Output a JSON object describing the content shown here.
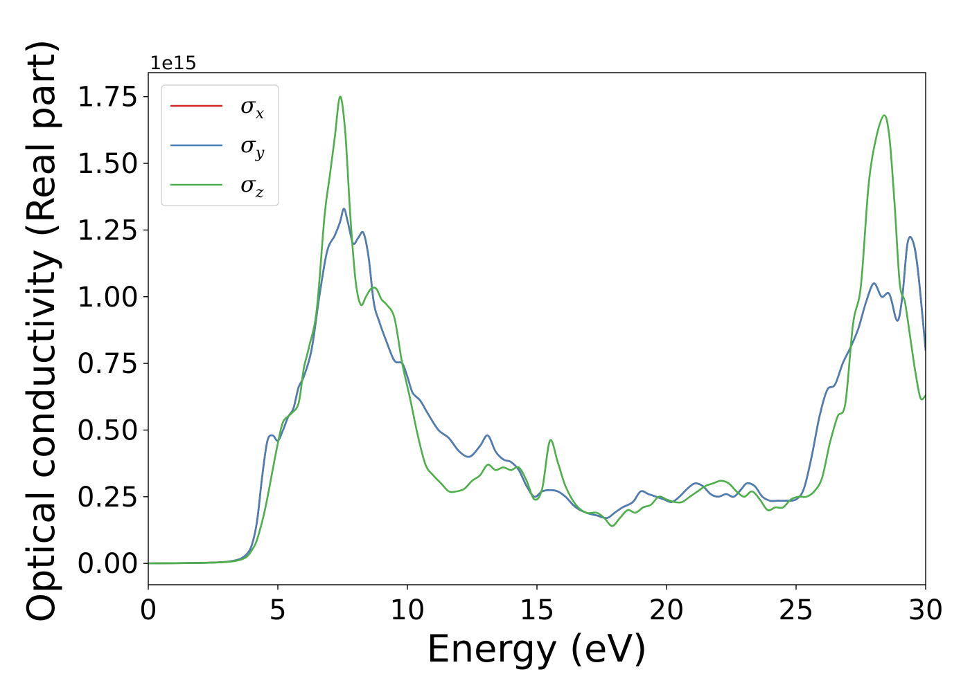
{
  "chart_data": {
    "type": "line",
    "title": "",
    "xlabel": "Energy (eV)",
    "ylabel": "Optical conductivity (Real part)",
    "y_offset_text": "1e15",
    "y_scale": 1000000000000000.0,
    "xlim": [
      0,
      30
    ],
    "ylim": [
      -0.08,
      1.84
    ],
    "xticks": [
      0,
      5,
      10,
      15,
      20,
      25,
      30
    ],
    "xtick_labels": [
      "0",
      "5",
      "10",
      "15",
      "20",
      "25",
      "30"
    ],
    "yticks": [
      0.0,
      0.25,
      0.5,
      0.75,
      1.0,
      1.25,
      1.5,
      1.75
    ],
    "ytick_labels": [
      "0.00",
      "0.25",
      "0.50",
      "0.75",
      "1.00",
      "1.25",
      "1.50",
      "1.75"
    ],
    "grid": false,
    "legend_position": "top-left",
    "series": [
      {
        "name": "σx",
        "name_base": "σ",
        "name_sub": "x",
        "color": "#d62728",
        "x": [
          0,
          2,
          3,
          3.5,
          3.8,
          4.0,
          4.2,
          4.4,
          4.6,
          4.8,
          5.0,
          5.2,
          5.4,
          5.6,
          5.8,
          6.0,
          6.3,
          6.6,
          6.9,
          7.2,
          7.4,
          7.55,
          7.7,
          7.9,
          8.1,
          8.3,
          8.5,
          8.7,
          8.9,
          9.2,
          9.5,
          9.8,
          10.0,
          10.2,
          10.5,
          10.8,
          11.2,
          11.6,
          12.0,
          12.4,
          12.8,
          13.1,
          13.4,
          13.7,
          14.0,
          14.3,
          14.6,
          14.9,
          15.2,
          15.5,
          15.8,
          16.1,
          16.5,
          16.9,
          17.3,
          17.7,
          18.0,
          18.3,
          18.7,
          19.0,
          19.3,
          19.6,
          19.9,
          20.2,
          20.5,
          20.8,
          21.1,
          21.4,
          21.7,
          22.0,
          22.3,
          22.6,
          22.9,
          23.1,
          23.4,
          23.7,
          24.0,
          24.3,
          24.6,
          25.0,
          25.3,
          25.6,
          25.9,
          26.2,
          26.5,
          26.8,
          27.1,
          27.4,
          27.7,
          28.0,
          28.3,
          28.6,
          28.9,
          29.1,
          29.3,
          29.5,
          29.7,
          30.0
        ],
        "y": [
          0.0,
          0.002,
          0.006,
          0.015,
          0.035,
          0.07,
          0.16,
          0.33,
          0.46,
          0.48,
          0.46,
          0.5,
          0.55,
          0.58,
          0.66,
          0.7,
          0.8,
          1.0,
          1.17,
          1.23,
          1.28,
          1.33,
          1.28,
          1.2,
          1.22,
          1.24,
          1.15,
          0.98,
          0.91,
          0.83,
          0.76,
          0.75,
          0.7,
          0.64,
          0.61,
          0.56,
          0.5,
          0.47,
          0.42,
          0.4,
          0.44,
          0.48,
          0.42,
          0.39,
          0.38,
          0.35,
          0.29,
          0.25,
          0.27,
          0.275,
          0.27,
          0.25,
          0.21,
          0.19,
          0.18,
          0.17,
          0.19,
          0.21,
          0.23,
          0.27,
          0.26,
          0.25,
          0.24,
          0.23,
          0.25,
          0.28,
          0.3,
          0.29,
          0.26,
          0.25,
          0.26,
          0.25,
          0.28,
          0.3,
          0.29,
          0.25,
          0.235,
          0.235,
          0.235,
          0.24,
          0.28,
          0.4,
          0.55,
          0.65,
          0.67,
          0.75,
          0.81,
          0.88,
          0.98,
          1.05,
          1.0,
          1.01,
          0.91,
          1.0,
          1.2,
          1.21,
          1.1,
          0.8
        ]
      },
      {
        "name": "σy",
        "name_base": "σ",
        "name_sub": "y",
        "color": "#4a7fb5",
        "x": [
          0,
          2,
          3,
          3.5,
          3.8,
          4.0,
          4.2,
          4.4,
          4.6,
          4.8,
          5.0,
          5.2,
          5.4,
          5.6,
          5.8,
          6.0,
          6.3,
          6.6,
          6.9,
          7.2,
          7.4,
          7.55,
          7.7,
          7.9,
          8.1,
          8.3,
          8.5,
          8.7,
          8.9,
          9.2,
          9.5,
          9.8,
          10.0,
          10.2,
          10.5,
          10.8,
          11.2,
          11.6,
          12.0,
          12.4,
          12.8,
          13.1,
          13.4,
          13.7,
          14.0,
          14.3,
          14.6,
          14.9,
          15.2,
          15.5,
          15.8,
          16.1,
          16.5,
          16.9,
          17.3,
          17.7,
          18.0,
          18.3,
          18.7,
          19.0,
          19.3,
          19.6,
          19.9,
          20.2,
          20.5,
          20.8,
          21.1,
          21.4,
          21.7,
          22.0,
          22.3,
          22.6,
          22.9,
          23.1,
          23.4,
          23.7,
          24.0,
          24.3,
          24.6,
          25.0,
          25.3,
          25.6,
          25.9,
          26.2,
          26.5,
          26.8,
          27.1,
          27.4,
          27.7,
          28.0,
          28.3,
          28.6,
          28.9,
          29.1,
          29.3,
          29.5,
          29.7,
          30.0
        ],
        "y": [
          0.0,
          0.002,
          0.006,
          0.015,
          0.035,
          0.07,
          0.16,
          0.33,
          0.46,
          0.48,
          0.46,
          0.5,
          0.55,
          0.58,
          0.66,
          0.7,
          0.8,
          1.0,
          1.17,
          1.23,
          1.28,
          1.33,
          1.28,
          1.2,
          1.22,
          1.24,
          1.15,
          0.98,
          0.91,
          0.83,
          0.76,
          0.75,
          0.7,
          0.64,
          0.61,
          0.56,
          0.5,
          0.47,
          0.42,
          0.4,
          0.44,
          0.48,
          0.42,
          0.39,
          0.38,
          0.35,
          0.29,
          0.25,
          0.27,
          0.275,
          0.27,
          0.25,
          0.21,
          0.19,
          0.18,
          0.17,
          0.19,
          0.21,
          0.23,
          0.27,
          0.26,
          0.25,
          0.24,
          0.23,
          0.25,
          0.28,
          0.3,
          0.29,
          0.26,
          0.25,
          0.26,
          0.25,
          0.28,
          0.3,
          0.29,
          0.25,
          0.235,
          0.235,
          0.235,
          0.24,
          0.28,
          0.4,
          0.55,
          0.65,
          0.67,
          0.75,
          0.81,
          0.88,
          0.98,
          1.05,
          1.0,
          1.01,
          0.91,
          1.0,
          1.2,
          1.21,
          1.1,
          0.8
        ]
      },
      {
        "name": "σz",
        "name_base": "σ",
        "name_sub": "z",
        "color": "#4daf4a",
        "x": [
          0,
          2,
          3,
          3.5,
          3.8,
          4.0,
          4.2,
          4.5,
          4.8,
          5.0,
          5.2,
          5.5,
          5.8,
          6.0,
          6.2,
          6.5,
          6.8,
          7.0,
          7.2,
          7.4,
          7.6,
          7.8,
          8.0,
          8.2,
          8.4,
          8.6,
          8.8,
          9.0,
          9.2,
          9.5,
          9.8,
          10.1,
          10.4,
          10.7,
          11.0,
          11.3,
          11.6,
          11.9,
          12.2,
          12.5,
          12.8,
          13.1,
          13.4,
          13.7,
          14.0,
          14.3,
          14.6,
          14.9,
          15.2,
          15.5,
          15.8,
          16.1,
          16.5,
          16.9,
          17.3,
          17.6,
          17.9,
          18.2,
          18.5,
          18.8,
          19.1,
          19.4,
          19.7,
          20.0,
          20.3,
          20.6,
          20.9,
          21.2,
          21.5,
          21.8,
          22.1,
          22.4,
          22.7,
          23.0,
          23.3,
          23.6,
          23.9,
          24.2,
          24.5,
          24.8,
          25.1,
          25.4,
          25.7,
          26.0,
          26.3,
          26.6,
          26.9,
          27.2,
          27.5,
          27.8,
          28.1,
          28.4,
          28.6,
          28.8,
          29.0,
          29.2,
          29.4,
          29.6,
          29.8,
          30.0
        ],
        "y": [
          0.0,
          0.002,
          0.005,
          0.012,
          0.025,
          0.05,
          0.09,
          0.2,
          0.35,
          0.45,
          0.53,
          0.56,
          0.6,
          0.73,
          0.81,
          0.95,
          1.3,
          1.45,
          1.6,
          1.75,
          1.62,
          1.3,
          1.06,
          0.97,
          1.0,
          1.03,
          1.03,
          0.99,
          0.97,
          0.92,
          0.75,
          0.62,
          0.48,
          0.37,
          0.33,
          0.3,
          0.27,
          0.27,
          0.28,
          0.31,
          0.33,
          0.37,
          0.35,
          0.36,
          0.35,
          0.36,
          0.31,
          0.24,
          0.28,
          0.46,
          0.38,
          0.29,
          0.22,
          0.19,
          0.19,
          0.17,
          0.14,
          0.17,
          0.2,
          0.19,
          0.21,
          0.22,
          0.25,
          0.24,
          0.23,
          0.23,
          0.25,
          0.27,
          0.29,
          0.3,
          0.31,
          0.3,
          0.27,
          0.25,
          0.27,
          0.24,
          0.2,
          0.21,
          0.21,
          0.24,
          0.25,
          0.25,
          0.27,
          0.32,
          0.45,
          0.55,
          0.6,
          0.9,
          1.04,
          1.42,
          1.6,
          1.68,
          1.6,
          1.35,
          1.05,
          0.98,
          0.85,
          0.72,
          0.62,
          0.63
        ]
      }
    ]
  }
}
